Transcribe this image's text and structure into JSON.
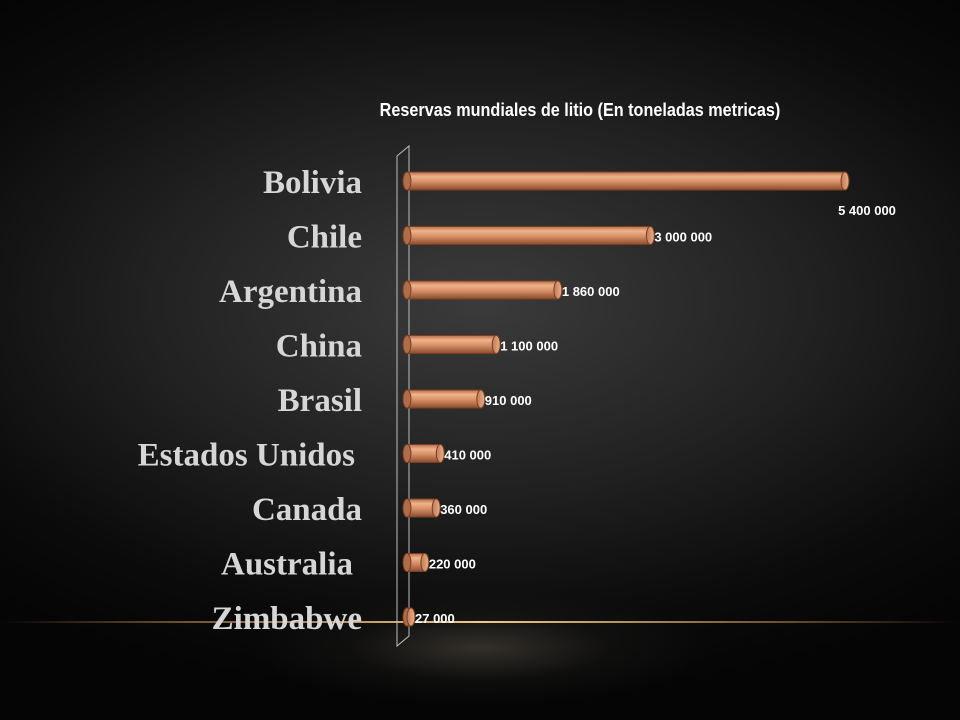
{
  "chart_data": {
    "type": "bar",
    "orientation": "horizontal",
    "title": "Reservas mundiales de litio (En toneladas metricas)",
    "categories": [
      "Bolivia",
      "Chile",
      "Argentina",
      "China",
      "Brasil",
      "Estados Unidos",
      "Canada",
      "Australia",
      "Zimbabwe"
    ],
    "values": [
      5400000,
      3000000,
      1860000,
      1100000,
      910000,
      410000,
      360000,
      220000,
      27000
    ],
    "value_labels": [
      "5 400 000",
      "3 000 000",
      "1 860 000",
      "1 100 000",
      "910 000",
      "410 000",
      "360 000",
      "220 000",
      "27 000"
    ],
    "xlim": [
      0,
      5400000
    ],
    "grid": false,
    "legend": "none",
    "bar_color": "#d78f66",
    "bar_edge_color": "#7a3f22",
    "background": "#000000"
  }
}
